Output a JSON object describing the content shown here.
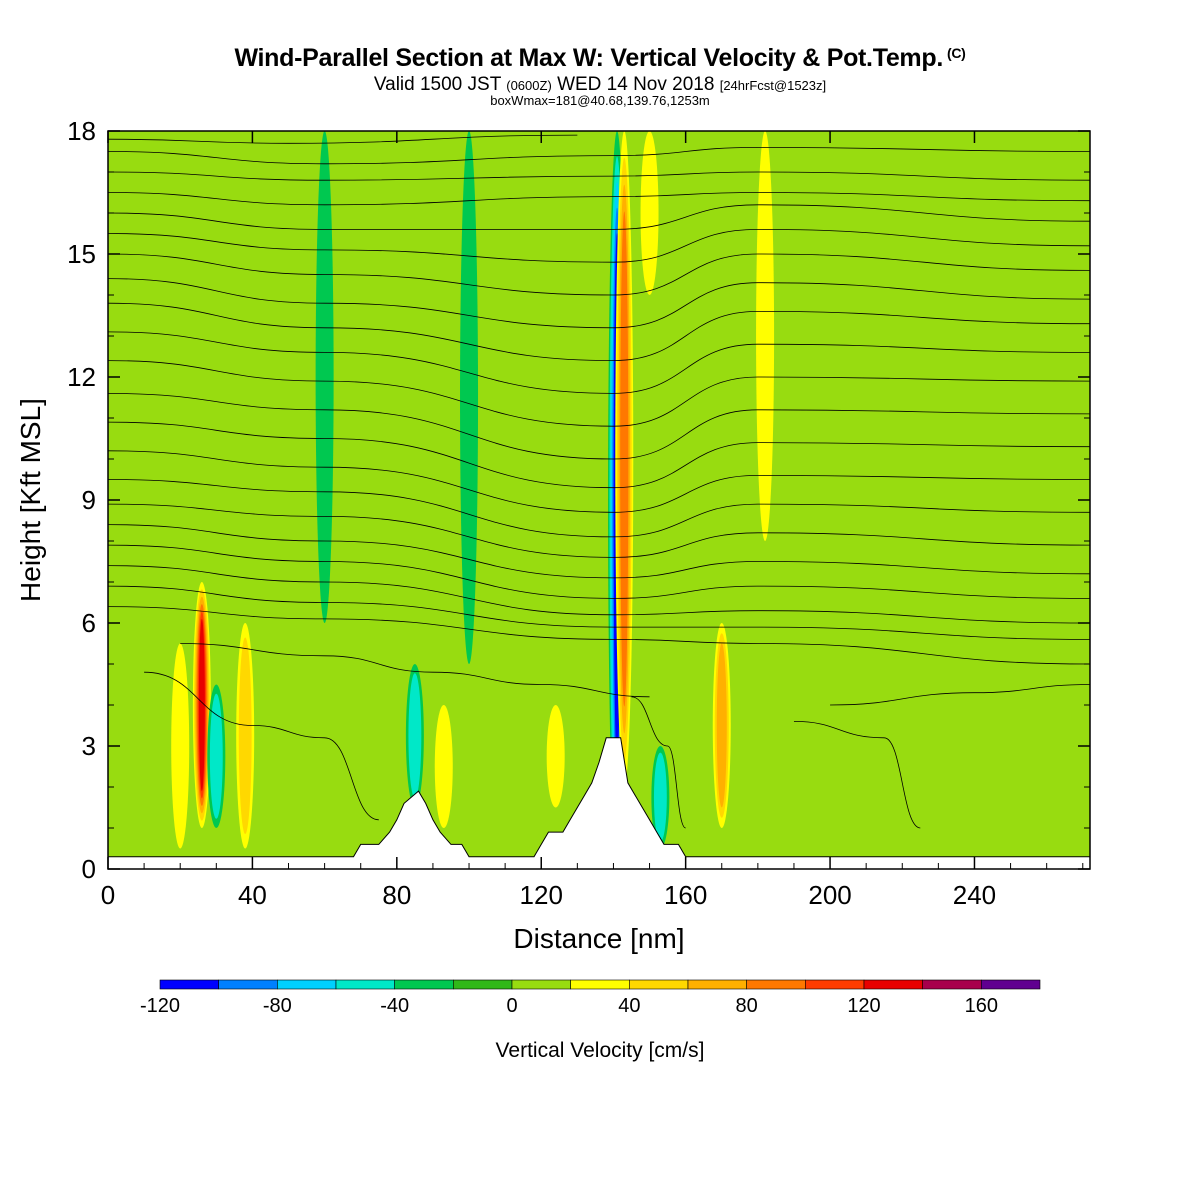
{
  "header": {
    "title": "Wind-Parallel Section at Max W: Vertical Velocity & Pot.Temp.",
    "copyright": "(C)",
    "valid_prefix": "Valid 1500 JST",
    "valid_utc": "(0600Z)",
    "valid_date": "WED 14 Nov 2018",
    "forecast_info": "[24hrFcst@1523z]",
    "box_info": "boxWmax=181@40.68,139.76,1253m"
  },
  "chart_data": {
    "type": "heatmap",
    "title": "Wind-Parallel Section at Max W: Vertical Velocity & Pot.Temp.",
    "xlabel": "Distance [nm]",
    "ylabel": "Height [Kft MSL]",
    "xlim": [
      0,
      272
    ],
    "ylim": [
      0,
      18
    ],
    "x_ticks": [
      0,
      40,
      80,
      120,
      160,
      200,
      240
    ],
    "x_tick_labels": [
      "0",
      "40",
      "80",
      "120",
      "160",
      "200",
      "240"
    ],
    "y_ticks": [
      0,
      3,
      6,
      9,
      12,
      15,
      18
    ],
    "y_tick_labels": [
      "0",
      "3",
      "6",
      "9",
      "12",
      "15",
      "18"
    ],
    "background_value": 0,
    "colorbar": {
      "title": "Vertical Velocity [cm/s]",
      "bounds": [
        -120,
        -100,
        -80,
        -60,
        -40,
        -20,
        0,
        20,
        40,
        60,
        80,
        100,
        120,
        140,
        160,
        180
      ],
      "colors": [
        "#0000ff",
        "#0080ff",
        "#00d0ff",
        "#00e8c8",
        "#00c850",
        "#30b818",
        "#98dc10",
        "#ffff00",
        "#ffd800",
        "#ffb000",
        "#ff7800",
        "#ff3c00",
        "#e80000",
        "#a8004c",
        "#600090"
      ],
      "tick_values": [
        -120,
        -80,
        -40,
        0,
        40,
        80,
        120,
        160
      ],
      "tick_labels": [
        "-120",
        "-80",
        "-40",
        "0",
        "40",
        "80",
        "120",
        "160"
      ]
    },
    "vertical_velocity_features": [
      {
        "x": 141,
        "y": [
          0,
          18
        ],
        "value": -100
      },
      {
        "x": 143,
        "y": [
          2,
          18
        ],
        "value": 80
      },
      {
        "x": 170,
        "y": [
          1,
          6
        ],
        "value": 70
      },
      {
        "x": 26,
        "y": [
          1,
          7
        ],
        "value": 130
      },
      {
        "x": 20,
        "y": [
          0.5,
          5.5
        ],
        "value": 35
      },
      {
        "x": 30,
        "y": [
          1,
          4.5
        ],
        "value": -50
      },
      {
        "x": 38,
        "y": [
          0.5,
          6
        ],
        "value": 40
      },
      {
        "x": 85,
        "y": [
          1.5,
          5
        ],
        "value": -55
      },
      {
        "x": 93,
        "y": [
          1,
          4
        ],
        "value": 35
      },
      {
        "x": 124,
        "y": [
          1.5,
          4
        ],
        "value": 30
      },
      {
        "x": 153,
        "y": [
          0.5,
          3
        ],
        "value": -40
      },
      {
        "x": 182,
        "y": [
          8,
          18
        ],
        "value": 25
      },
      {
        "x": 150,
        "y": [
          14,
          18
        ],
        "value": 30
      },
      {
        "x": 60,
        "y": [
          6,
          18
        ],
        "value": -20
      },
      {
        "x": 100,
        "y": [
          5,
          18
        ],
        "value": -25
      },
      {
        "x": 235,
        "y": [
          3,
          14
        ],
        "value": 10
      }
    ],
    "terrain": {
      "x": [
        0,
        68,
        70,
        75,
        78,
        80,
        82,
        86,
        88,
        90,
        92,
        95,
        98,
        100,
        118,
        120,
        122,
        126,
        128,
        130,
        132,
        134,
        136,
        138,
        142,
        144,
        146,
        148,
        150,
        152,
        154,
        158,
        160,
        272
      ],
      "height": [
        0.3,
        0.3,
        0.6,
        0.6,
        0.9,
        1.2,
        1.6,
        1.9,
        1.6,
        1.2,
        0.9,
        0.6,
        0.6,
        0.3,
        0.3,
        0.6,
        0.9,
        0.9,
        1.2,
        1.5,
        1.8,
        2.1,
        2.6,
        3.2,
        3.2,
        2.1,
        1.8,
        1.5,
        1.2,
        0.9,
        0.6,
        0.6,
        0.3,
        0.3
      ]
    },
    "isentropes": [
      {
        "label": "",
        "pts": [
          [
            0,
            17.8
          ],
          [
            50,
            17.7
          ],
          [
            130,
            17.9
          ]
        ]
      },
      {
        "label": "",
        "pts": [
          [
            0,
            17.5
          ],
          [
            60,
            17.2
          ],
          [
            140,
            17.4
          ],
          [
            180,
            17.6
          ],
          [
            272,
            17.5
          ]
        ]
      },
      {
        "label": "",
        "pts": [
          [
            0,
            17.0
          ],
          [
            60,
            16.8
          ],
          [
            140,
            16.9
          ],
          [
            180,
            17.0
          ],
          [
            272,
            16.8
          ]
        ]
      },
      {
        "label": "",
        "pts": [
          [
            0,
            16.5
          ],
          [
            60,
            16.2
          ],
          [
            140,
            16.4
          ],
          [
            180,
            16.5
          ],
          [
            272,
            16.3
          ]
        ]
      },
      {
        "label": "",
        "pts": [
          [
            0,
            16.0
          ],
          [
            60,
            15.6
          ],
          [
            140,
            15.6
          ],
          [
            180,
            16.2
          ],
          [
            272,
            15.8
          ]
        ]
      },
      {
        "label": "",
        "pts": [
          [
            0,
            15.5
          ],
          [
            60,
            15.1
          ],
          [
            140,
            14.8
          ],
          [
            180,
            15.6
          ],
          [
            272,
            15.2
          ]
        ]
      },
      {
        "label": "",
        "pts": [
          [
            0,
            15.0
          ],
          [
            60,
            14.5
          ],
          [
            140,
            14.0
          ],
          [
            180,
            15.0
          ],
          [
            272,
            14.6
          ]
        ]
      },
      {
        "label": "",
        "pts": [
          [
            0,
            14.4
          ],
          [
            60,
            13.8
          ],
          [
            140,
            13.2
          ],
          [
            180,
            14.3
          ],
          [
            272,
            13.9
          ]
        ]
      },
      {
        "label": "",
        "pts": [
          [
            0,
            13.8
          ],
          [
            60,
            13.2
          ],
          [
            140,
            12.4
          ],
          [
            180,
            13.6
          ],
          [
            272,
            13.3
          ]
        ]
      },
      {
        "label": "",
        "pts": [
          [
            0,
            13.1
          ],
          [
            60,
            12.6
          ],
          [
            140,
            11.6
          ],
          [
            180,
            12.8
          ],
          [
            272,
            12.6
          ]
        ]
      },
      {
        "label": "",
        "pts": [
          [
            0,
            12.4
          ],
          [
            60,
            11.9
          ],
          [
            140,
            10.8
          ],
          [
            180,
            12.0
          ],
          [
            272,
            11.9
          ]
        ]
      },
      {
        "label": "",
        "pts": [
          [
            0,
            11.6
          ],
          [
            60,
            11.2
          ],
          [
            140,
            10.0
          ],
          [
            180,
            11.2
          ],
          [
            272,
            11.1
          ]
        ]
      },
      {
        "label": "",
        "pts": [
          [
            0,
            10.9
          ],
          [
            60,
            10.5
          ],
          [
            140,
            9.3
          ],
          [
            180,
            10.4
          ],
          [
            272,
            10.3
          ]
        ]
      },
      {
        "label": "",
        "pts": [
          [
            0,
            10.2
          ],
          [
            60,
            9.8
          ],
          [
            140,
            8.7
          ],
          [
            180,
            9.6
          ],
          [
            272,
            9.5
          ]
        ]
      },
      {
        "label": "",
        "pts": [
          [
            0,
            9.5
          ],
          [
            60,
            9.2
          ],
          [
            140,
            8.1
          ],
          [
            180,
            8.9
          ],
          [
            272,
            8.7
          ]
        ]
      },
      {
        "label": "",
        "pts": [
          [
            0,
            8.9
          ],
          [
            60,
            8.6
          ],
          [
            140,
            7.6
          ],
          [
            180,
            8.2
          ],
          [
            272,
            7.9
          ]
        ]
      },
      {
        "label": "",
        "pts": [
          [
            0,
            8.4
          ],
          [
            60,
            8.0
          ],
          [
            140,
            7.1
          ],
          [
            180,
            7.5
          ],
          [
            272,
            7.2
          ]
        ]
      },
      {
        "label": "",
        "pts": [
          [
            0,
            7.9
          ],
          [
            60,
            7.5
          ],
          [
            140,
            6.6
          ],
          [
            180,
            6.9
          ],
          [
            272,
            6.6
          ]
        ]
      },
      {
        "label": "",
        "pts": [
          [
            0,
            7.4
          ],
          [
            60,
            7.0
          ],
          [
            140,
            6.2
          ],
          [
            180,
            6.3
          ],
          [
            272,
            6.0
          ]
        ]
      },
      {
        "label": "",
        "pts": [
          [
            0,
            6.9
          ],
          [
            60,
            6.5
          ],
          [
            140,
            5.9
          ],
          [
            180,
            5.9
          ],
          [
            272,
            5.6
          ]
        ]
      },
      {
        "label": "",
        "pts": [
          [
            0,
            6.4
          ],
          [
            60,
            6.1
          ],
          [
            140,
            5.6
          ],
          [
            180,
            5.5
          ],
          [
            272,
            5.0
          ]
        ]
      },
      {
        "label": "",
        "pts": [
          [
            20,
            5.5
          ],
          [
            60,
            5.2
          ],
          [
            90,
            4.8
          ],
          [
            120,
            4.5
          ],
          [
            150,
            4.2
          ]
        ]
      },
      {
        "label": "",
        "pts": [
          [
            200,
            4.0
          ],
          [
            240,
            4.3
          ],
          [
            272,
            4.5
          ]
        ]
      },
      {
        "label": "",
        "pts": [
          [
            10,
            4.8
          ],
          [
            40,
            3.5
          ],
          [
            60,
            3.2
          ],
          [
            75,
            1.2
          ]
        ]
      },
      {
        "label": "",
        "pts": [
          [
            190,
            3.6
          ],
          [
            215,
            3.2
          ],
          [
            225,
            1.0
          ]
        ]
      },
      {
        "label": "",
        "pts": [
          [
            145,
            4.2
          ],
          [
            155,
            3.0
          ],
          [
            160,
            1.0
          ]
        ]
      }
    ]
  }
}
